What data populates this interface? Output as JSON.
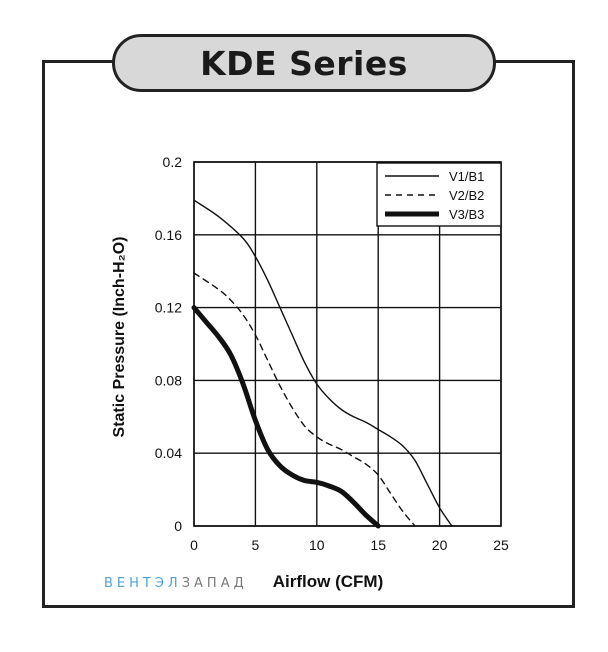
{
  "header": {
    "title": "KDE Series"
  },
  "watermark": {
    "part1": "ВЕНТЭЛ",
    "part2": "ЗАПАД"
  },
  "chart_data": {
    "type": "line",
    "xlabel": "Airflow (CFM)",
    "ylabel": "Static Pressure (Inch-H₂O)",
    "xlim": [
      0,
      25
    ],
    "ylim": [
      0,
      0.2
    ],
    "x_ticks": [
      "0",
      "5",
      "10",
      "15",
      "20",
      "25"
    ],
    "y_ticks": [
      "0",
      "0.04",
      "0.08",
      "0.12",
      "0.16",
      "0.2"
    ],
    "grid": true,
    "legend_position": "top-right",
    "series": [
      {
        "name": "V1/B1",
        "style": "thin-solid",
        "x": [
          0,
          2,
          4,
          5,
          6,
          7,
          8,
          9,
          10,
          11,
          12,
          13,
          14,
          15,
          16,
          17,
          18,
          19,
          20,
          21
        ],
        "y": [
          0.179,
          0.17,
          0.158,
          0.148,
          0.135,
          0.12,
          0.105,
          0.09,
          0.078,
          0.07,
          0.064,
          0.06,
          0.057,
          0.053,
          0.049,
          0.044,
          0.036,
          0.023,
          0.01,
          0
        ]
      },
      {
        "name": "V2/B2",
        "style": "dashed",
        "x": [
          0,
          2,
          3,
          4,
          5,
          6,
          7,
          8,
          9,
          10,
          11,
          12,
          13,
          14,
          15,
          16,
          17,
          18
        ],
        "y": [
          0.139,
          0.13,
          0.124,
          0.116,
          0.105,
          0.091,
          0.077,
          0.065,
          0.055,
          0.049,
          0.045,
          0.042,
          0.038,
          0.034,
          0.028,
          0.018,
          0.008,
          0
        ]
      },
      {
        "name": "V3/B3",
        "style": "thick-solid",
        "x": [
          0,
          1,
          2,
          3,
          4,
          5,
          6,
          7,
          8,
          9,
          10,
          11,
          12,
          13,
          14,
          15
        ],
        "y": [
          0.12,
          0.112,
          0.104,
          0.094,
          0.078,
          0.058,
          0.042,
          0.033,
          0.028,
          0.025,
          0.024,
          0.022,
          0.019,
          0.013,
          0.006,
          0
        ]
      }
    ]
  }
}
